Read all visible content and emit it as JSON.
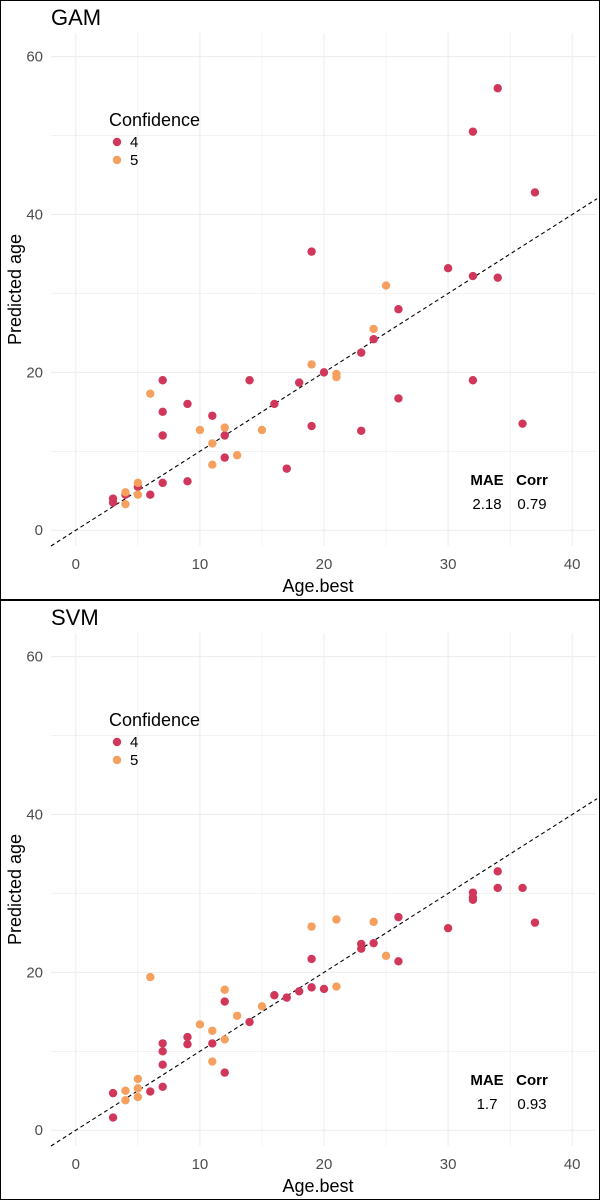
{
  "colors": {
    "4": "#d0375a",
    "5": "#f5a05f",
    "grid": "#ebebeb",
    "refline": "#000000"
  },
  "chart_data": [
    {
      "type": "scatter",
      "title": "GAM",
      "xlabel": "Age.best",
      "ylabel": "Predicted age",
      "xlim": [
        -2,
        42
      ],
      "ylim": [
        -2,
        63
      ],
      "xticks": [
        0,
        10,
        20,
        30,
        40
      ],
      "yticks": [
        0,
        20,
        40,
        60
      ],
      "grid": true,
      "reference_line": "y = x (dashed)",
      "legend": {
        "title": "Confidence",
        "entries": [
          "4",
          "5"
        ],
        "placement": "top-left"
      },
      "metrics": {
        "headers": [
          "MAE",
          "Corr"
        ],
        "values": [
          "2.18",
          "0.79"
        ]
      },
      "series": [
        {
          "name": "4",
          "points": [
            [
              3,
              4
            ],
            [
              3,
              3.5
            ],
            [
              4,
              4.5
            ],
            [
              5,
              5.5
            ],
            [
              6,
              4.5
            ],
            [
              7,
              19
            ],
            [
              7,
              15
            ],
            [
              7,
              12
            ],
            [
              7,
              6
            ],
            [
              9,
              16
            ],
            [
              9,
              6.2
            ],
            [
              11,
              14.5
            ],
            [
              12,
              12
            ],
            [
              12,
              9.2
            ],
            [
              14,
              19
            ],
            [
              16,
              16
            ],
            [
              17,
              7.8
            ],
            [
              18,
              18.7
            ],
            [
              19,
              35.3
            ],
            [
              19,
              13.2
            ],
            [
              20,
              20
            ],
            [
              23,
              22.5
            ],
            [
              23,
              12.6
            ],
            [
              24,
              24.2
            ],
            [
              26,
              28
            ],
            [
              26,
              16.7
            ],
            [
              30,
              33.2
            ],
            [
              32,
              50.5
            ],
            [
              32,
              32.2
            ],
            [
              32,
              19
            ],
            [
              34,
              56
            ],
            [
              34,
              32
            ],
            [
              36,
              13.5
            ],
            [
              37,
              42.8
            ]
          ]
        },
        {
          "name": "5",
          "points": [
            [
              4,
              4.8
            ],
            [
              4,
              3.3
            ],
            [
              5,
              6
            ],
            [
              5,
              4.5
            ],
            [
              6,
              17.3
            ],
            [
              10,
              12.7
            ],
            [
              11,
              11
            ],
            [
              11,
              8.3
            ],
            [
              12,
              13
            ],
            [
              13,
              9.5
            ],
            [
              15,
              12.7
            ],
            [
              19,
              21
            ],
            [
              21,
              19.8
            ],
            [
              21,
              19.4
            ],
            [
              24,
              25.5
            ],
            [
              25,
              31
            ]
          ]
        }
      ]
    },
    {
      "type": "scatter",
      "title": "SVM",
      "xlabel": "Age.best",
      "ylabel": "Predicted age",
      "xlim": [
        -2,
        42
      ],
      "ylim": [
        -2,
        63
      ],
      "xticks": [
        0,
        10,
        20,
        30,
        40
      ],
      "yticks": [
        0,
        20,
        40,
        60
      ],
      "grid": true,
      "reference_line": "y = x (dashed)",
      "legend": {
        "title": "Confidence",
        "entries": [
          "4",
          "5"
        ],
        "placement": "top-left"
      },
      "metrics": {
        "headers": [
          "MAE",
          "Corr"
        ],
        "values": [
          "1.7",
          "0.93"
        ]
      },
      "series": [
        {
          "name": "4",
          "points": [
            [
              3,
              4.7
            ],
            [
              3,
              1.6
            ],
            [
              6,
              4.9
            ],
            [
              7,
              11
            ],
            [
              7,
              10
            ],
            [
              7,
              8.3
            ],
            [
              7,
              5.5
            ],
            [
              9,
              11.8
            ],
            [
              9,
              10.9
            ],
            [
              11,
              11
            ],
            [
              12,
              16.3
            ],
            [
              12,
              7.3
            ],
            [
              14,
              13.7
            ],
            [
              16,
              17.1
            ],
            [
              17,
              16.8
            ],
            [
              18,
              17.6
            ],
            [
              19,
              21.7
            ],
            [
              19,
              18.1
            ],
            [
              20,
              17.9
            ],
            [
              23,
              23.6
            ],
            [
              23,
              23
            ],
            [
              24,
              23.7
            ],
            [
              26,
              27
            ],
            [
              26,
              21.4
            ],
            [
              30,
              25.6
            ],
            [
              32,
              30.1
            ],
            [
              32,
              29.5
            ],
            [
              32,
              29.2
            ],
            [
              34,
              32.8
            ],
            [
              34,
              30.7
            ],
            [
              36,
              30.7
            ],
            [
              37,
              26.3
            ]
          ]
        },
        {
          "name": "5",
          "points": [
            [
              4,
              5
            ],
            [
              4,
              3.8
            ],
            [
              5,
              6.5
            ],
            [
              5,
              5.3
            ],
            [
              5,
              4.2
            ],
            [
              6,
              19.4
            ],
            [
              10,
              13.4
            ],
            [
              11,
              12.6
            ],
            [
              11,
              8.7
            ],
            [
              12,
              17.8
            ],
            [
              12,
              11.5
            ],
            [
              13,
              14.5
            ],
            [
              15,
              15.7
            ],
            [
              19,
              25.8
            ],
            [
              21,
              26.7
            ],
            [
              21,
              18.2
            ],
            [
              24,
              26.4
            ],
            [
              25,
              22.1
            ]
          ]
        }
      ]
    }
  ]
}
